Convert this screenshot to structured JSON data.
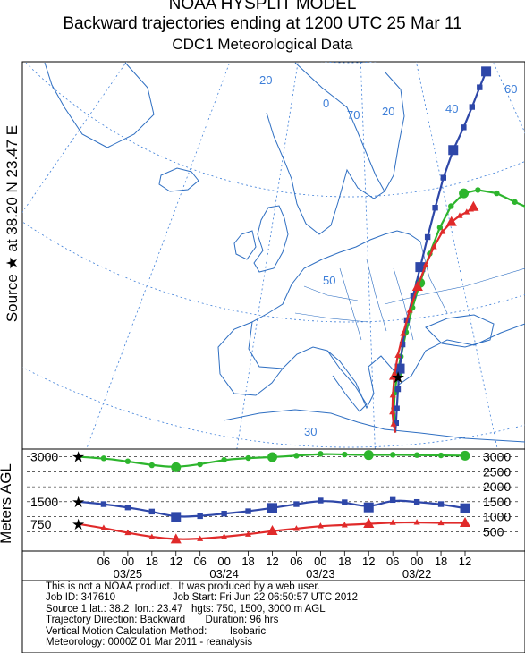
{
  "title": {
    "line1": "NOAA HYSPLIT MODEL",
    "line2": "Backward trajectories ending at 1200 UTC 25 Mar 11",
    "line3": "CDC1 Meteorological Data"
  },
  "side_label": "Source ★ at   38.20 N   23.47 E",
  "agl_label": "Meters AGL",
  "map_grid_labels": [
    "20",
    "0",
    "70",
    "20",
    "40",
    "60",
    "50",
    "30"
  ],
  "source_marker": "★",
  "chart_data": {
    "type": "line",
    "title": "Backward trajectories ending at 1200 UTC 25 Mar 11",
    "xlabel": "",
    "ylabel": "Meters AGL",
    "x_ticks": [
      "06",
      "00",
      "18",
      "12",
      "06",
      "00",
      "18",
      "12",
      "06",
      "00",
      "18",
      "12",
      "06",
      "00",
      "18",
      "12"
    ],
    "date_labels": [
      "03/25",
      "03/24",
      "03/23",
      "03/22"
    ],
    "y_ticks_left": [
      "3000",
      "1500",
      "750"
    ],
    "y_ticks_right": [
      "3000",
      "2500",
      "2000",
      "1500",
      "1000",
      "500"
    ],
    "x_axis_hours_before_end": [
      0,
      6,
      12,
      18,
      24,
      30,
      36,
      42,
      48,
      54,
      60,
      66,
      72,
      78,
      84,
      90,
      96
    ],
    "series": [
      {
        "name": "3000",
        "color": "#2db52d",
        "marker": "circle",
        "heights_m": [
          3000,
          2950,
          2850,
          2720,
          2650,
          2750,
          2900,
          2960,
          2990,
          3040,
          3100,
          3080,
          3060,
          3070,
          3060,
          3050,
          3040
        ]
      },
      {
        "name": "1500",
        "color": "#2e47a8",
        "marker": "square",
        "heights_m": [
          1500,
          1420,
          1310,
          1170,
          990,
          1020,
          1100,
          1180,
          1290,
          1420,
          1540,
          1480,
          1310,
          1560,
          1490,
          1420,
          1280
        ]
      },
      {
        "name": "750",
        "color": "#e02a2a",
        "marker": "triangle",
        "heights_m": [
          750,
          620,
          460,
          320,
          240,
          260,
          330,
          410,
          520,
          600,
          690,
          720,
          760,
          800,
          810,
          790,
          790
        ]
      }
    ],
    "map_paths_lonlat": {
      "3000": [
        [
          23.47,
          38.2
        ],
        [
          23.6,
          39.0
        ],
        [
          23.8,
          40.2
        ],
        [
          23.6,
          41.5
        ],
        [
          23.0,
          43.0
        ],
        [
          22.0,
          44.5
        ],
        [
          20.5,
          46.5
        ],
        [
          18.5,
          48.5
        ],
        [
          16.0,
          50.5
        ],
        [
          12.5,
          52.8
        ],
        [
          8.5,
          54.8
        ],
        [
          4.0,
          56.3
        ],
        [
          -1.0,
          57.0
        ],
        [
          -6.0,
          56.8
        ],
        [
          -12.0,
          55.8
        ],
        [
          -17.0,
          54.3
        ],
        [
          -22.5,
          52.5
        ]
      ],
      "1500": [
        [
          23.47,
          38.2
        ],
        [
          23.3,
          39.0
        ],
        [
          23.1,
          40.2
        ],
        [
          22.8,
          41.8
        ],
        [
          22.3,
          43.5
        ],
        [
          21.5,
          45.5
        ],
        [
          20.2,
          47.5
        ],
        [
          18.2,
          49.5
        ],
        [
          15.7,
          51.8
        ],
        [
          12.8,
          54.2
        ],
        [
          9.5,
          56.5
        ],
        [
          5.5,
          58.8
        ],
        [
          0.5,
          60.8
        ],
        [
          -5.0,
          62.3
        ],
        [
          -10.0,
          63.6
        ],
        [
          -15.0,
          64.8
        ],
        [
          -19.5,
          65.7
        ]
      ],
      "750": [
        [
          23.47,
          38.2
        ],
        [
          23.9,
          38.9
        ],
        [
          24.2,
          39.9
        ],
        [
          24.1,
          41.3
        ],
        [
          23.7,
          42.9
        ],
        [
          22.8,
          44.6
        ],
        [
          21.3,
          46.4
        ],
        [
          19.3,
          48.3
        ],
        [
          16.8,
          50.2
        ],
        [
          14.0,
          51.9
        ],
        [
          11.0,
          53.3
        ],
        [
          7.8,
          54.4
        ],
        [
          4.5,
          55.0
        ],
        [
          1.5,
          55.3
        ],
        [
          -1.0,
          55.4
        ],
        [
          -2.5,
          55.5
        ],
        [
          -3.5,
          55.6
        ]
      ]
    }
  },
  "info": {
    "disclaimer": "This is not a NOAA product.  It was produced by a web user.",
    "job": "Job ID: 347610                    Job Start: Fri Jun 22 06:50:57 UTC 2012",
    "source": "Source 1 lat.: 38.2  lon.: 23.47   hgts: 750, 1500, 3000 m AGL",
    "direction": "Trajectory Direction: Backward       Duration: 96 hrs",
    "vertical": "Vertical Motion Calculation Method:        Isobaric",
    "met": "Meteorology: 0000Z 01 Mar 2011 - reanalysis"
  }
}
